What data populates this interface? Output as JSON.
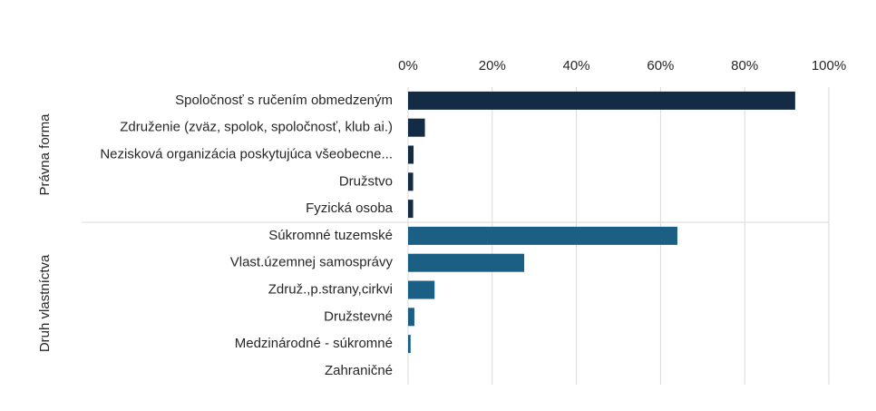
{
  "chart_data": {
    "type": "bar",
    "orientation": "horizontal",
    "xlim": [
      0,
      100
    ],
    "xticks": [
      {
        "value": 0,
        "label": "0%"
      },
      {
        "value": 20,
        "label": "20%"
      },
      {
        "value": 40,
        "label": "40%"
      },
      {
        "value": 60,
        "label": "60%"
      },
      {
        "value": 80,
        "label": "80%"
      },
      {
        "value": 100,
        "label": "100%"
      }
    ],
    "grid": true,
    "groups": [
      {
        "name": "Právna forma",
        "color": "#142b45",
        "categories": [
          "Spoločnosť s ručením obmedzeným",
          "Združenie (zväz, spolok, spoločnosť, klub ai.)",
          "Nezisková organizácia poskytujúca všeobecne...",
          "Družstvo",
          "Fyzická osoba"
        ],
        "values": [
          92,
          4,
          1.3,
          1.2,
          1.2
        ]
      },
      {
        "name": "Druh vlastníctva",
        "color": "#1c5f85",
        "categories": [
          "Súkromné tuzemské",
          "Vlast.územnej samosprávy",
          "Združ.,p.strany,cirkvi",
          "Družstevné",
          "Medzinárodné - súkromné",
          "Zahraničné"
        ],
        "values": [
          64,
          27.6,
          6.3,
          1.5,
          0.6,
          0
        ]
      }
    ]
  }
}
